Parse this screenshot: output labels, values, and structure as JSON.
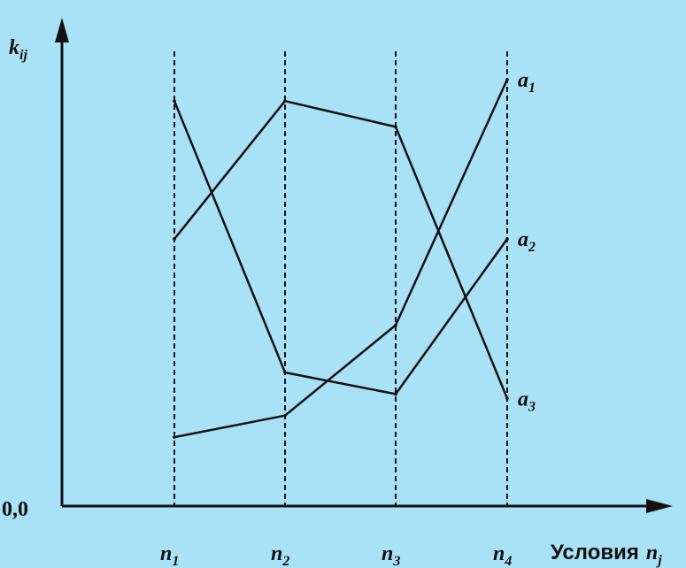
{
  "chart_data": {
    "type": "line",
    "ylabel": {
      "base": "k",
      "sub": "ij"
    },
    "xlabel": {
      "word": "Условия",
      "base": "n",
      "sub": "j"
    },
    "origin_label": "0,0",
    "categories": [
      {
        "base": "n",
        "sub": "1"
      },
      {
        "base": "n",
        "sub": "2"
      },
      {
        "base": "n",
        "sub": "3"
      },
      {
        "base": "n",
        "sub": "4"
      }
    ],
    "ylim": [
      0,
      1
    ],
    "grid": "dashed vertical guides at each category",
    "series": [
      {
        "name": {
          "base": "a",
          "sub": "1"
        },
        "values": [
          0.16,
          0.21,
          0.42,
          0.99
        ]
      },
      {
        "name": {
          "base": "a",
          "sub": "2"
        },
        "values": [
          0.62,
          0.94,
          0.88,
          0.25
        ]
      },
      {
        "name": {
          "base": "a",
          "sub": "3"
        },
        "values": [
          0.94,
          0.31,
          0.26,
          0.62
        ]
      }
    ],
    "line_color": "#111111",
    "background_color": "#a9e1f6"
  }
}
